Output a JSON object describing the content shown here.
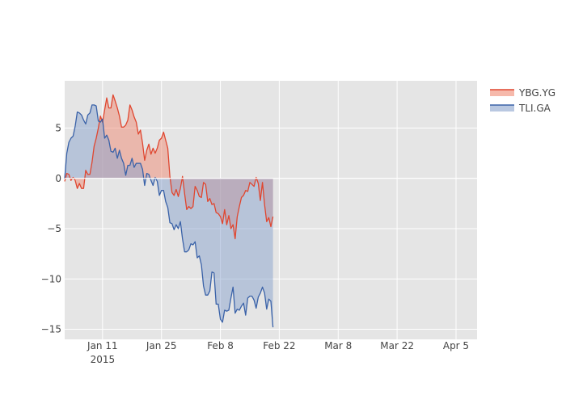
{
  "chart_data": {
    "type": "area",
    "x_start": "2015-01-02",
    "x_step_days": 0.5,
    "xlim": [
      "2015-01-02",
      "2015-04-10"
    ],
    "ylim": [
      -16,
      9.7
    ],
    "grid": true,
    "legend_position": "top-right",
    "fill_to": "zero",
    "x_ticks": [
      {
        "date": "2015-01-11",
        "label": "Jan 11",
        "sublabel": "2015"
      },
      {
        "date": "2015-01-25",
        "label": "Jan 25",
        "sublabel": ""
      },
      {
        "date": "2015-02-08",
        "label": "Feb 8",
        "sublabel": ""
      },
      {
        "date": "2015-02-22",
        "label": "Feb 22",
        "sublabel": ""
      },
      {
        "date": "2015-03-08",
        "label": "Mar 8",
        "sublabel": ""
      },
      {
        "date": "2015-03-22",
        "label": "Mar 22",
        "sublabel": ""
      },
      {
        "date": "2015-04-05",
        "label": "Apr 5",
        "sublabel": ""
      }
    ],
    "y_ticks": [
      {
        "value": 5,
        "label": "5"
      },
      {
        "value": 0,
        "label": "0"
      },
      {
        "value": -5,
        "label": "−5"
      },
      {
        "value": -10,
        "label": "−10"
      },
      {
        "value": -15,
        "label": "−15"
      }
    ],
    "series": [
      {
        "name": "YBG.YG",
        "line_color": "#e0462f",
        "fill_color": "#f08a73",
        "values": [
          -0.3,
          0.5,
          0.4,
          -0.2,
          0.1,
          -0.2,
          -1.0,
          -0.5,
          -1.0,
          -1.0,
          0.8,
          0.4,
          0.4,
          1.6,
          3.2,
          4.0,
          5.0,
          6.2,
          5.6,
          6.8,
          8.0,
          7.0,
          7.0,
          8.3,
          7.7,
          7.0,
          6.2,
          5.1,
          5.1,
          5.3,
          5.8,
          7.3,
          6.8,
          6.1,
          5.6,
          4.4,
          4.8,
          3.5,
          1.8,
          2.8,
          3.4,
          2.4,
          3.0,
          2.5,
          3.0,
          3.8,
          4.0,
          4.6,
          3.8,
          3.0,
          0.2,
          -1.4,
          -1.7,
          -1.1,
          -1.8,
          -1.0,
          0.2,
          -1.5,
          -3.1,
          -2.8,
          -3.0,
          -2.8,
          -0.8,
          -1.2,
          -1.8,
          -1.9,
          -0.4,
          -0.6,
          -2.3,
          -2.0,
          -2.6,
          -2.5,
          -3.4,
          -3.5,
          -3.8,
          -4.5,
          -3.1,
          -4.6,
          -3.7,
          -5.0,
          -4.6,
          -6.0,
          -3.8,
          -2.8,
          -1.9,
          -1.7,
          -1.2,
          -1.3,
          -0.4,
          -0.6,
          -0.8,
          0.1,
          -0.5,
          -2.2,
          -0.4,
          -2.6,
          -4.3,
          -3.9,
          -4.8,
          -3.8
        ]
      },
      {
        "name": "TLI.GA",
        "line_color": "#3a62a8",
        "fill_color": "#8aa4cd",
        "values": [
          0.0,
          2.5,
          3.6,
          4.0,
          4.2,
          5.2,
          6.6,
          6.5,
          6.3,
          5.8,
          5.4,
          6.3,
          6.5,
          7.3,
          7.3,
          7.2,
          5.7,
          5.6,
          5.9,
          4.0,
          4.3,
          3.8,
          2.7,
          2.6,
          3.0,
          2.0,
          2.8,
          2.0,
          1.5,
          0.3,
          1.3,
          1.3,
          2.0,
          1.1,
          1.5,
          1.5,
          1.5,
          0.9,
          -0.7,
          0.5,
          0.4,
          -0.2,
          -0.7,
          0.1,
          -0.3,
          -1.7,
          -1.2,
          -1.2,
          -2.3,
          -2.9,
          -4.4,
          -4.5,
          -5.1,
          -4.6,
          -5.0,
          -4.3,
          -6.0,
          -7.3,
          -7.3,
          -7.1,
          -6.5,
          -6.6,
          -6.3,
          -7.9,
          -7.7,
          -8.6,
          -10.7,
          -11.6,
          -11.6,
          -11.2,
          -9.3,
          -9.4,
          -12.5,
          -12.5,
          -14.0,
          -14.3,
          -13.1,
          -13.2,
          -13.1,
          -11.9,
          -10.8,
          -13.4,
          -13.0,
          -13.1,
          -12.7,
          -12.4,
          -13.6,
          -11.9,
          -11.7,
          -11.7,
          -12.1,
          -12.9,
          -11.8,
          -11.4,
          -10.8,
          -11.4,
          -13.0,
          -12.0,
          -12.2,
          -14.8
        ]
      }
    ]
  }
}
